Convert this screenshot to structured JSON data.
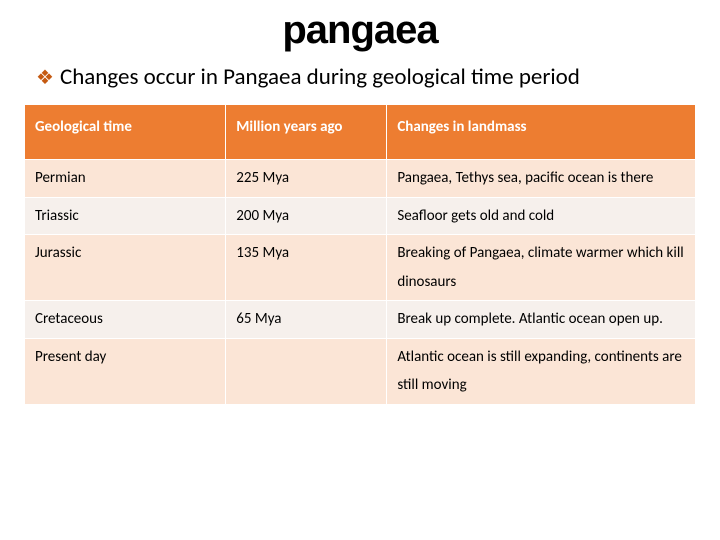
{
  "title": "pangaea",
  "subtitle": "Changes occur in Pangaea during geological time period",
  "table": {
    "columns": [
      "Geological time",
      "Million years ago",
      "Changes in landmass"
    ],
    "header_bg": "#ed7d31",
    "header_fg": "#ffffff",
    "row_odd_bg": "#fbe5d6",
    "row_even_bg": "#f6f0ec",
    "border_color": "#ffffff",
    "col_widths": [
      "30%",
      "24%",
      "46%"
    ],
    "font_size": 15,
    "rows": [
      {
        "time": "Permian",
        "mya": "225 Mya",
        "changes": "Pangaea, Tethys sea, pacific ocean is there"
      },
      {
        "time": "Triassic",
        "mya": "200 Mya",
        "changes": "Seafloor gets old and cold"
      },
      {
        "time": "Jurassic",
        "mya": "135 Mya",
        "changes": "Breaking of Pangaea, climate warmer which kill dinosaurs"
      },
      {
        "time": "Cretaceous",
        "mya": "65 Mya",
        "changes": "Break up complete. Atlantic ocean open up."
      },
      {
        "time": "Present day",
        "mya": "",
        "changes": "Atlantic ocean is still expanding, continents are still moving"
      }
    ]
  },
  "bullet_color": "#c55a11",
  "title_color": "#000000",
  "background_color": "#ffffff"
}
